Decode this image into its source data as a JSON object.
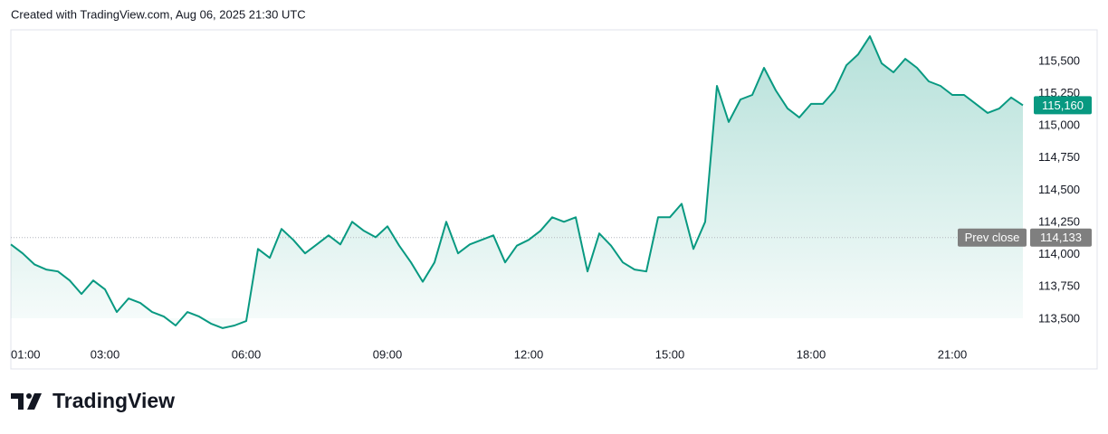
{
  "header": {
    "created": "Created with TradingView.com, Aug 06, 2025 21:30 UTC"
  },
  "footer": {
    "brand": "TradingView"
  },
  "chart_data": {
    "type": "area",
    "color": "#089981",
    "x": [
      "01:00",
      "01:15",
      "01:30",
      "01:45",
      "02:00",
      "02:15",
      "02:30",
      "02:45",
      "03:00",
      "03:15",
      "03:30",
      "03:45",
      "04:00",
      "04:15",
      "04:30",
      "04:45",
      "05:00",
      "05:15",
      "05:30",
      "05:45",
      "06:00",
      "06:15",
      "06:30",
      "06:45",
      "07:00",
      "07:15",
      "07:30",
      "07:45",
      "08:00",
      "08:15",
      "08:30",
      "08:45",
      "09:00",
      "09:15",
      "09:30",
      "09:45",
      "10:00",
      "10:15",
      "10:30",
      "10:45",
      "11:00",
      "11:15",
      "11:30",
      "11:45",
      "12:00",
      "12:15",
      "12:30",
      "12:45",
      "13:00",
      "13:15",
      "13:30",
      "13:45",
      "14:00",
      "14:15",
      "14:30",
      "14:45",
      "15:00",
      "15:15",
      "15:30",
      "15:45",
      "16:00",
      "16:15",
      "16:30",
      "16:45",
      "17:00",
      "17:15",
      "17:30",
      "17:45",
      "18:00",
      "18:15",
      "18:30",
      "18:45",
      "19:00",
      "19:15",
      "19:30",
      "19:45",
      "20:00",
      "20:15",
      "20:30",
      "20:45",
      "21:00",
      "21:15",
      "21:30",
      "21:45",
      "22:00",
      "22:15",
      "22:30"
    ],
    "values": [
      114080,
      114010,
      113925,
      113885,
      113870,
      113800,
      113695,
      113800,
      113730,
      113555,
      113660,
      113625,
      113555,
      113520,
      113450,
      113555,
      113520,
      113465,
      113430,
      113450,
      113485,
      114045,
      113975,
      114200,
      114115,
      114010,
      114080,
      114150,
      114080,
      114255,
      114185,
      114135,
      114220,
      114070,
      113940,
      113790,
      113940,
      114255,
      114010,
      114080,
      114115,
      114150,
      113940,
      114070,
      114115,
      114185,
      114290,
      114255,
      114290,
      113870,
      114165,
      114070,
      113940,
      113885,
      113870,
      114290,
      114290,
      114395,
      114045,
      114255,
      115310,
      115030,
      115205,
      115240,
      115450,
      115275,
      115135,
      115065,
      115170,
      115170,
      115275,
      115470,
      115555,
      115695,
      115485,
      115415,
      115520,
      115450,
      115345,
      115310,
      115240,
      115240,
      115170,
      115100,
      115135,
      115220,
      115160
    ],
    "last_price_label": "115,160",
    "prev_close": 114133,
    "prev_close_label": "114,133",
    "prev_close_text": "Prev close",
    "xlim": [
      "01:00",
      "22:30"
    ],
    "xticks": [
      "01:00",
      "03:00",
      "06:00",
      "09:00",
      "12:00",
      "15:00",
      "18:00",
      "21:00"
    ],
    "ylim": [
      113310,
      115745
    ],
    "yticks": [
      {
        "value": 113500,
        "label": "113,500"
      },
      {
        "value": 113750,
        "label": "113,750"
      },
      {
        "value": 114000,
        "label": "114,000"
      },
      {
        "value": 114250,
        "label": "114,250"
      },
      {
        "value": 114500,
        "label": "114,500"
      },
      {
        "value": 114750,
        "label": "114,750"
      },
      {
        "value": 115000,
        "label": "115,000"
      },
      {
        "value": 115250,
        "label": "115,250"
      },
      {
        "value": 115500,
        "label": "115,500"
      }
    ]
  }
}
